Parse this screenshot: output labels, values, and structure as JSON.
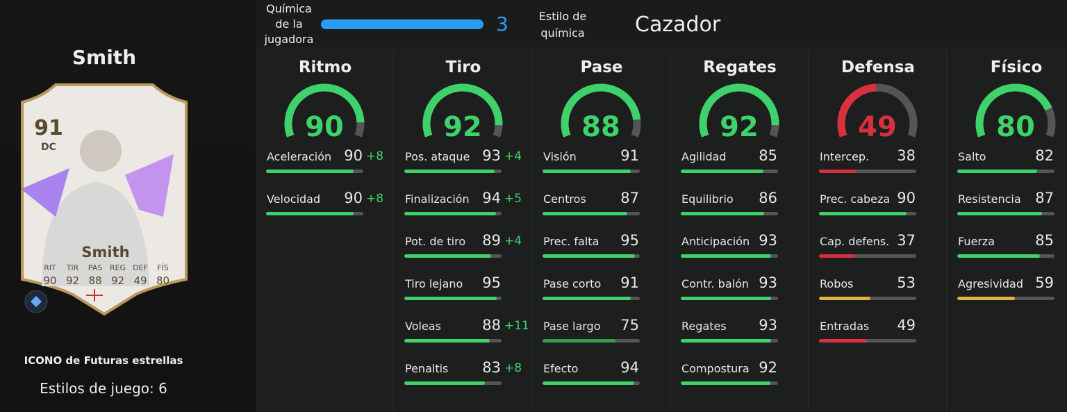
{
  "player": {
    "name": "Smith",
    "version": "ICONO de Futuras estrellas",
    "playstyles_label": "Estilos de juego:",
    "playstyles": 6,
    "card": {
      "rating": 91,
      "position": "DC",
      "name": "Smith",
      "stat_labels": [
        "RIT",
        "TIR",
        "PAS",
        "REG",
        "DEF",
        "FÍS"
      ],
      "stat_values": [
        90,
        92,
        88,
        92,
        49,
        80
      ]
    }
  },
  "chemistry": {
    "label": "Química de la jugadora",
    "value": 3,
    "style_label": "Estilo de química",
    "style": "Cazador"
  },
  "categories": [
    {
      "name": "Ritmo",
      "value": 90,
      "stats": [
        {
          "name": "Aceleración",
          "value": 90,
          "boost": "+8"
        },
        {
          "name": "Velocidad",
          "value": 90,
          "boost": "+8"
        }
      ]
    },
    {
      "name": "Tiro",
      "value": 92,
      "stats": [
        {
          "name": "Pos. ataque",
          "value": 93,
          "boost": "+4"
        },
        {
          "name": "Finalización",
          "value": 94,
          "boost": "+5"
        },
        {
          "name": "Pot. de tiro",
          "value": 89,
          "boost": "+4"
        },
        {
          "name": "Tiro lejano",
          "value": 95
        },
        {
          "name": "Voleas",
          "value": 88,
          "boost": "+11"
        },
        {
          "name": "Penaltis",
          "value": 83,
          "boost": "+8"
        }
      ]
    },
    {
      "name": "Pase",
      "value": 88,
      "stats": [
        {
          "name": "Visión",
          "value": 91
        },
        {
          "name": "Centros",
          "value": 87
        },
        {
          "name": "Prec. falta",
          "value": 95
        },
        {
          "name": "Pase corto",
          "value": 91
        },
        {
          "name": "Pase largo",
          "value": 75
        },
        {
          "name": "Efecto",
          "value": 94
        }
      ]
    },
    {
      "name": "Regates",
      "value": 92,
      "stats": [
        {
          "name": "Agilidad",
          "value": 85
        },
        {
          "name": "Equilibrio",
          "value": 86
        },
        {
          "name": "Anticipación",
          "value": 93
        },
        {
          "name": "Contr. balón",
          "value": 93
        },
        {
          "name": "Regates",
          "value": 93
        },
        {
          "name": "Compostura",
          "value": 92
        }
      ]
    },
    {
      "name": "Defensa",
      "value": 49,
      "stats": [
        {
          "name": "Intercep.",
          "value": 38
        },
        {
          "name": "Prec. cabeza",
          "value": 90
        },
        {
          "name": "Cap. defens.",
          "value": 37
        },
        {
          "name": "Robos",
          "value": 53
        },
        {
          "name": "Entradas",
          "value": 49
        }
      ]
    },
    {
      "name": "Físico",
      "value": 80,
      "stats": [
        {
          "name": "Salto",
          "value": 82
        },
        {
          "name": "Resistencia",
          "value": 87
        },
        {
          "name": "Fuerza",
          "value": 85
        },
        {
          "name": "Agresividad",
          "value": 59
        }
      ]
    }
  ]
}
